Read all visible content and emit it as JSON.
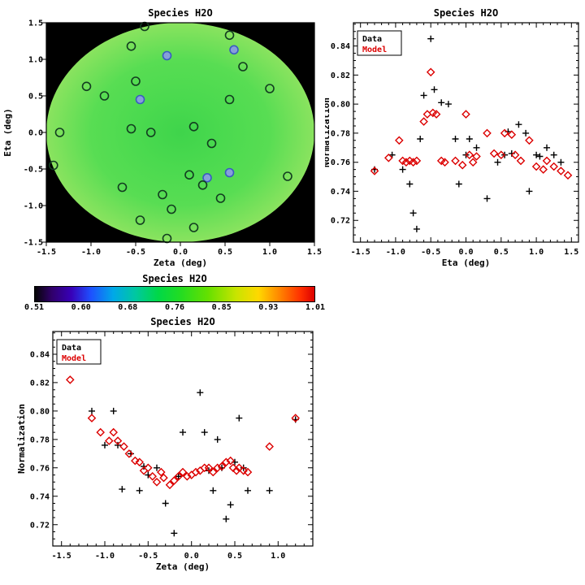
{
  "figure": {
    "background": "#ffffff"
  },
  "chart_data": [
    {
      "id": "map",
      "type": "heatmap",
      "title": "Species H2O",
      "xlabel": "Zeta (deg)",
      "ylabel": "Eta (deg)",
      "xlim": [
        -1.5,
        1.5
      ],
      "ylim": [
        -1.5,
        1.5
      ],
      "xtick_vals": [
        -1.5,
        -1.0,
        -0.5,
        0.0,
        0.5,
        1.0,
        1.5
      ],
      "xtick_labels": [
        "-1.5",
        "-1.0",
        "-0.5",
        "0.0",
        "0.5",
        "1.0",
        "1.5"
      ],
      "ytick_vals": [
        -1.5,
        -1.0,
        -0.5,
        0.0,
        0.5,
        1.0,
        1.5
      ],
      "ytick_labels": [
        "-1.5",
        "-1.0",
        "-0.5",
        "0.0",
        "0.5",
        "1.0",
        "1.5"
      ],
      "background_color": "#000000",
      "disk_gradient": [
        "#3fd44b",
        "#4bda4f",
        "#58dd53",
        "#8ae35f"
      ],
      "marker_points": [
        {
          "x": -0.4,
          "y": 1.45,
          "stroke": "#123d20"
        },
        {
          "x": -0.55,
          "y": 1.18,
          "stroke": "#123d20"
        },
        {
          "x": -0.15,
          "y": 1.05,
          "stroke": "#3a5bc0",
          "fill": "#86a0da"
        },
        {
          "x": 0.55,
          "y": 1.33,
          "stroke": "#123d20"
        },
        {
          "x": 0.6,
          "y": 1.13,
          "stroke": "#3a5bc0",
          "fill": "#86a0da"
        },
        {
          "x": 0.7,
          "y": 0.9,
          "stroke": "#123d20"
        },
        {
          "x": -1.05,
          "y": 0.63,
          "stroke": "#123d20"
        },
        {
          "x": -0.85,
          "y": 0.5,
          "stroke": "#123d20"
        },
        {
          "x": -0.5,
          "y": 0.7,
          "stroke": "#123d20"
        },
        {
          "x": -0.45,
          "y": 0.45,
          "stroke": "#3a5bc0",
          "fill": "#86a0da"
        },
        {
          "x": 0.55,
          "y": 0.45,
          "stroke": "#123d20"
        },
        {
          "x": 1.0,
          "y": 0.6,
          "stroke": "#123d20"
        },
        {
          "x": -1.35,
          "y": 0.0,
          "stroke": "#123d20"
        },
        {
          "x": -0.55,
          "y": 0.05,
          "stroke": "#123d20"
        },
        {
          "x": -0.33,
          "y": 0.0,
          "stroke": "#123d20"
        },
        {
          "x": 0.15,
          "y": 0.08,
          "stroke": "#123d20"
        },
        {
          "x": 0.35,
          "y": -0.15,
          "stroke": "#123d20"
        },
        {
          "x": -1.42,
          "y": -0.45,
          "stroke": "#123d20"
        },
        {
          "x": 0.1,
          "y": -0.58,
          "stroke": "#123d20"
        },
        {
          "x": 0.3,
          "y": -0.62,
          "stroke": "#3a5bc0",
          "fill": "#86a0da"
        },
        {
          "x": 0.55,
          "y": -0.55,
          "stroke": "#3a5bc0",
          "fill": "#86a0da"
        },
        {
          "x": 1.2,
          "y": -0.6,
          "stroke": "#123d20"
        },
        {
          "x": -0.65,
          "y": -0.75,
          "stroke": "#123d20"
        },
        {
          "x": -0.2,
          "y": -0.85,
          "stroke": "#123d20"
        },
        {
          "x": 0.25,
          "y": -0.72,
          "stroke": "#123d20"
        },
        {
          "x": -0.1,
          "y": -1.05,
          "stroke": "#123d20"
        },
        {
          "x": -0.45,
          "y": -1.2,
          "stroke": "#123d20"
        },
        {
          "x": 0.15,
          "y": -1.3,
          "stroke": "#123d20"
        },
        {
          "x": -0.15,
          "y": -1.45,
          "stroke": "#123d20"
        },
        {
          "x": 0.45,
          "y": -0.9,
          "stroke": "#123d20"
        }
      ]
    },
    {
      "id": "eta_scatter",
      "type": "scatter",
      "title": "Species H2O",
      "xlabel": "Eta (deg)",
      "ylabel": "Normalization",
      "xlim": [
        -1.6,
        1.6
      ],
      "ylim": [
        0.705,
        0.856
      ],
      "xtick_vals": [
        -1.5,
        -1.0,
        -0.5,
        0.0,
        0.5,
        1.0,
        1.5
      ],
      "xtick_labels": [
        "-1.5",
        "-1.0",
        "-0.5",
        "0.0",
        "0.5",
        "1.0",
        "1.5"
      ],
      "ytick_vals": [
        0.72,
        0.74,
        0.76,
        0.78,
        0.8,
        0.82,
        0.84
      ],
      "ytick_labels": [
        "0.72",
        "0.74",
        "0.76",
        "0.78",
        "0.80",
        "0.82",
        "0.84"
      ],
      "x_minor_step": 0.1,
      "y_minor_step": 0.005,
      "legend": [
        {
          "label": "Data",
          "color": "#000000",
          "marker": "plus"
        },
        {
          "label": "Model",
          "color": "#dc0000",
          "marker": "diamond"
        }
      ],
      "series": [
        {
          "name": "Data",
          "marker": "plus",
          "color": "#000000",
          "points": [
            [
              -1.3,
              0.755
            ],
            [
              -1.05,
              0.765
            ],
            [
              -0.9,
              0.755
            ],
            [
              -0.8,
              0.745
            ],
            [
              -0.75,
              0.725
            ],
            [
              -0.7,
              0.714
            ],
            [
              -0.65,
              0.776
            ],
            [
              -0.6,
              0.806
            ],
            [
              -0.5,
              0.845
            ],
            [
              -0.45,
              0.81
            ],
            [
              -0.35,
              0.801
            ],
            [
              -0.25,
              0.8
            ],
            [
              -0.15,
              0.776
            ],
            [
              -0.1,
              0.745
            ],
            [
              0.0,
              0.765
            ],
            [
              0.05,
              0.776
            ],
            [
              0.15,
              0.77
            ],
            [
              0.3,
              0.735
            ],
            [
              0.45,
              0.76
            ],
            [
              0.55,
              0.765
            ],
            [
              0.6,
              0.781
            ],
            [
              0.65,
              0.766
            ],
            [
              0.75,
              0.786
            ],
            [
              0.85,
              0.78
            ],
            [
              0.9,
              0.74
            ],
            [
              1.0,
              0.765
            ],
            [
              1.05,
              0.764
            ],
            [
              1.15,
              0.77
            ],
            [
              1.25,
              0.765
            ],
            [
              1.35,
              0.76
            ]
          ]
        },
        {
          "name": "Model",
          "marker": "diamond",
          "color": "#dc0000",
          "points": [
            [
              -1.3,
              0.754
            ],
            [
              -1.1,
              0.763
            ],
            [
              -0.95,
              0.775
            ],
            [
              -0.9,
              0.761
            ],
            [
              -0.85,
              0.76
            ],
            [
              -0.8,
              0.761
            ],
            [
              -0.75,
              0.76
            ],
            [
              -0.7,
              0.761
            ],
            [
              -0.6,
              0.788
            ],
            [
              -0.55,
              0.793
            ],
            [
              -0.5,
              0.822
            ],
            [
              -0.47,
              0.794
            ],
            [
              -0.42,
              0.793
            ],
            [
              -0.35,
              0.761
            ],
            [
              -0.3,
              0.76
            ],
            [
              -0.15,
              0.761
            ],
            [
              -0.05,
              0.758
            ],
            [
              0.0,
              0.793
            ],
            [
              0.05,
              0.765
            ],
            [
              0.1,
              0.76
            ],
            [
              0.15,
              0.764
            ],
            [
              0.3,
              0.78
            ],
            [
              0.4,
              0.766
            ],
            [
              0.5,
              0.765
            ],
            [
              0.55,
              0.78
            ],
            [
              0.65,
              0.779
            ],
            [
              0.7,
              0.765
            ],
            [
              0.78,
              0.761
            ],
            [
              0.9,
              0.775
            ],
            [
              1.0,
              0.757
            ],
            [
              1.1,
              0.755
            ],
            [
              1.15,
              0.761
            ],
            [
              1.25,
              0.757
            ],
            [
              1.35,
              0.754
            ],
            [
              1.45,
              0.751
            ]
          ]
        }
      ]
    },
    {
      "id": "colorbar",
      "type": "colorbar",
      "title": "Species H2O",
      "tick_labels": [
        "0.51",
        "0.60",
        "0.68",
        "0.76",
        "0.85",
        "0.93",
        "1.01"
      ],
      "gradient_stops": [
        {
          "pos": 0.0,
          "color": "#050505"
        },
        {
          "pos": 0.06,
          "color": "#30006a"
        },
        {
          "pos": 0.13,
          "color": "#3800b8"
        },
        {
          "pos": 0.2,
          "color": "#1e50ff"
        },
        {
          "pos": 0.28,
          "color": "#00a8e8"
        },
        {
          "pos": 0.36,
          "color": "#00c8a0"
        },
        {
          "pos": 0.44,
          "color": "#00d848"
        },
        {
          "pos": 0.52,
          "color": "#22dc22"
        },
        {
          "pos": 0.62,
          "color": "#66e000"
        },
        {
          "pos": 0.72,
          "color": "#c8e400"
        },
        {
          "pos": 0.8,
          "color": "#ffd800"
        },
        {
          "pos": 0.88,
          "color": "#ff8000"
        },
        {
          "pos": 0.95,
          "color": "#ff3000"
        },
        {
          "pos": 1.0,
          "color": "#dc0000"
        }
      ]
    },
    {
      "id": "zeta_scatter",
      "type": "scatter",
      "title": "Species H2O",
      "xlabel": "Zeta (deg)",
      "ylabel": "Normalization",
      "xlim": [
        -1.6,
        1.4
      ],
      "ylim": [
        0.705,
        0.856
      ],
      "xtick_vals": [
        -1.5,
        -1.0,
        -0.5,
        0.0,
        0.5,
        1.0
      ],
      "xtick_labels": [
        "-1.5",
        "-1.0",
        "-0.5",
        "0.0",
        "0.5",
        "1.0"
      ],
      "ytick_vals": [
        0.72,
        0.74,
        0.76,
        0.78,
        0.8,
        0.82,
        0.84
      ],
      "ytick_labels": [
        "0.72",
        "0.74",
        "0.76",
        "0.78",
        "0.80",
        "0.82",
        "0.84"
      ],
      "x_minor_step": 0.1,
      "y_minor_step": 0.005,
      "legend": [
        {
          "label": "Data",
          "color": "#000000",
          "marker": "plus"
        },
        {
          "label": "Model",
          "color": "#dc0000",
          "marker": "diamond"
        }
      ],
      "series": [
        {
          "name": "Data",
          "marker": "plus",
          "color": "#000000",
          "points": [
            [
              -1.15,
              0.8
            ],
            [
              -1.0,
              0.776
            ],
            [
              -0.9,
              0.8
            ],
            [
              -0.85,
              0.776
            ],
            [
              -0.8,
              0.745
            ],
            [
              -0.7,
              0.77
            ],
            [
              -0.6,
              0.744
            ],
            [
              -0.55,
              0.761
            ],
            [
              -0.5,
              0.755
            ],
            [
              -0.4,
              0.76
            ],
            [
              -0.3,
              0.735
            ],
            [
              -0.2,
              0.714
            ],
            [
              -0.15,
              0.754
            ],
            [
              -0.1,
              0.785
            ],
            [
              0.1,
              0.813
            ],
            [
              0.15,
              0.785
            ],
            [
              0.2,
              0.758
            ],
            [
              0.25,
              0.744
            ],
            [
              0.3,
              0.78
            ],
            [
              0.35,
              0.76
            ],
            [
              0.4,
              0.724
            ],
            [
              0.45,
              0.734
            ],
            [
              0.5,
              0.764
            ],
            [
              0.55,
              0.795
            ],
            [
              0.6,
              0.76
            ],
            [
              0.65,
              0.744
            ],
            [
              0.9,
              0.744
            ],
            [
              1.2,
              0.794
            ]
          ]
        },
        {
          "name": "Model",
          "marker": "diamond",
          "color": "#dc0000",
          "points": [
            [
              -1.4,
              0.822
            ],
            [
              -1.15,
              0.795
            ],
            [
              -1.05,
              0.785
            ],
            [
              -0.95,
              0.779
            ],
            [
              -0.9,
              0.785
            ],
            [
              -0.85,
              0.779
            ],
            [
              -0.78,
              0.775
            ],
            [
              -0.72,
              0.77
            ],
            [
              -0.65,
              0.765
            ],
            [
              -0.6,
              0.764
            ],
            [
              -0.55,
              0.758
            ],
            [
              -0.5,
              0.76
            ],
            [
              -0.45,
              0.754
            ],
            [
              -0.4,
              0.75
            ],
            [
              -0.35,
              0.757
            ],
            [
              -0.32,
              0.753
            ],
            [
              -0.25,
              0.748
            ],
            [
              -0.2,
              0.751
            ],
            [
              -0.15,
              0.754
            ],
            [
              -0.1,
              0.757
            ],
            [
              -0.05,
              0.754
            ],
            [
              0.0,
              0.755
            ],
            [
              0.05,
              0.757
            ],
            [
              0.1,
              0.758
            ],
            [
              0.15,
              0.76
            ],
            [
              0.2,
              0.76
            ],
            [
              0.25,
              0.757
            ],
            [
              0.3,
              0.76
            ],
            [
              0.35,
              0.761
            ],
            [
              0.4,
              0.764
            ],
            [
              0.45,
              0.765
            ],
            [
              0.48,
              0.76
            ],
            [
              0.52,
              0.758
            ],
            [
              0.55,
              0.76
            ],
            [
              0.6,
              0.758
            ],
            [
              0.65,
              0.757
            ],
            [
              0.9,
              0.775
            ],
            [
              1.2,
              0.795
            ]
          ]
        }
      ]
    }
  ]
}
